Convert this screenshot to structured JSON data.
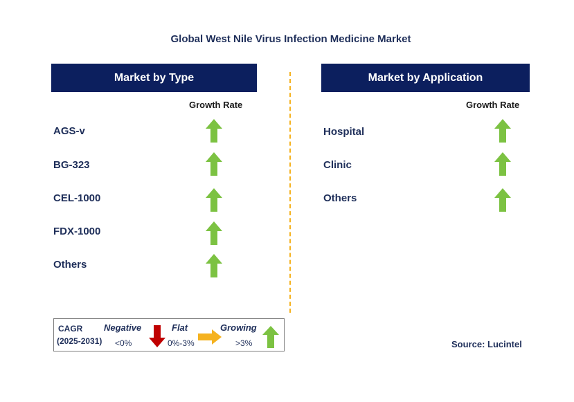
{
  "title": "Global West Nile Virus Infection Medicine Market",
  "left_panel": {
    "header": "Market by Type",
    "growth_label": "Growth Rate",
    "items": [
      "AGS-v",
      "BG-323",
      "CEL-1000",
      "FDX-1000",
      "Others"
    ]
  },
  "right_panel": {
    "header": "Market by Application",
    "growth_label": "Growth Rate",
    "items": [
      "Hospital",
      "Clinic",
      "Others"
    ]
  },
  "legend": {
    "cagr": "CAGR",
    "period": "(2025-2031)",
    "negative": "Negative",
    "negative_range": "<0%",
    "flat": "Flat",
    "flat_range": "0%-3%",
    "growing": "Growing",
    "growing_range": ">3%"
  },
  "source": "Source: Lucintel",
  "colors": {
    "header_bg": "#0c1f5e",
    "arrow_up": "#7cc242",
    "arrow_down": "#c00000",
    "arrow_flat": "#f5b21f",
    "divider": "#f5b21f"
  },
  "icons": {
    "growth": "green-up-arrow-icon",
    "negative": "red-down-arrow-icon",
    "flat": "yellow-right-arrow-icon"
  }
}
